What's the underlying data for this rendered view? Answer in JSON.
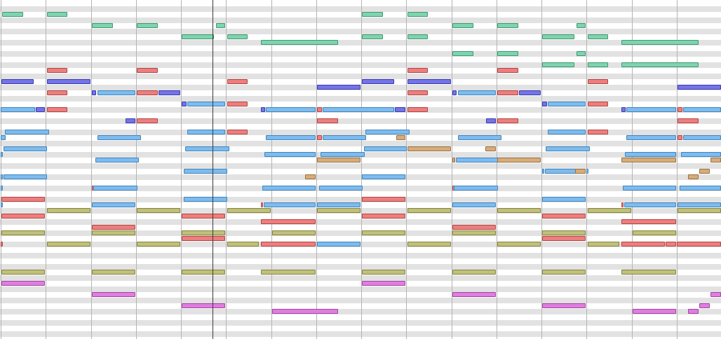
{
  "piano_roll": {
    "lane_count": 60,
    "playhead_bar": 4.7,
    "colors": {
      "green": "#7fd3ae",
      "red": "#ee7e7e",
      "purple": "#7474e8",
      "blue": "#7ebbee",
      "tan": "#d6ac7b",
      "olive": "#c0c07a",
      "pink": "#e07ee0"
    },
    "notes": [
      {
        "c": "green",
        "p": 2,
        "s": 0.03,
        "l": 0.48
      },
      {
        "c": "green",
        "p": 2,
        "s": 1.02,
        "l": 0.48
      },
      {
        "c": "green",
        "p": 2,
        "s": 8.02,
        "l": 0.48
      },
      {
        "c": "green",
        "p": 2,
        "s": 9.02,
        "l": 0.48
      },
      {
        "c": "green",
        "p": 4,
        "s": 2.02,
        "l": 0.48
      },
      {
        "c": "green",
        "p": 4,
        "s": 3.02,
        "l": 0.48
      },
      {
        "c": "green",
        "p": 4,
        "s": 4.77,
        "l": 0.23
      },
      {
        "c": "green",
        "p": 4,
        "s": 10.02,
        "l": 0.48
      },
      {
        "c": "green",
        "p": 4,
        "s": 11.02,
        "l": 0.48
      },
      {
        "c": "green",
        "p": 4,
        "s": 12.77,
        "l": 0.23
      },
      {
        "c": "green",
        "p": 6,
        "s": 4.02,
        "l": 0.73
      },
      {
        "c": "green",
        "p": 6,
        "s": 5.02,
        "l": 0.48
      },
      {
        "c": "green",
        "p": 6,
        "s": 8.02,
        "l": 0.48
      },
      {
        "c": "green",
        "p": 6,
        "s": 9.02,
        "l": 0.48
      },
      {
        "c": "green",
        "p": 6,
        "s": 12.02,
        "l": 0.73
      },
      {
        "c": "green",
        "p": 6,
        "s": 13.02,
        "l": 0.48
      },
      {
        "c": "green",
        "p": 7,
        "s": 5.77,
        "l": 1.73
      },
      {
        "c": "green",
        "p": 7,
        "s": 13.77,
        "l": 1.73
      },
      {
        "c": "green",
        "p": 9,
        "s": 10.02,
        "l": 0.48
      },
      {
        "c": "green",
        "p": 9,
        "s": 11.02,
        "l": 0.48
      },
      {
        "c": "green",
        "p": 9,
        "s": 12.77,
        "l": 0.23
      },
      {
        "c": "green",
        "p": 11,
        "s": 12.02,
        "l": 0.73
      },
      {
        "c": "green",
        "p": 11,
        "s": 13.02,
        "l": 0.48
      },
      {
        "c": "green",
        "p": 11,
        "s": 13.77,
        "l": 1.73
      },
      {
        "c": "red",
        "p": 12,
        "s": 1.02,
        "l": 0.48
      },
      {
        "c": "red",
        "p": 12,
        "s": 3.02,
        "l": 0.48
      },
      {
        "c": "red",
        "p": 12,
        "s": 9.02,
        "l": 0.48
      },
      {
        "c": "red",
        "p": 12,
        "s": 11.02,
        "l": 0.48
      },
      {
        "c": "purple",
        "p": 14,
        "s": 0.02,
        "l": 0.73
      },
      {
        "c": "purple",
        "p": 14,
        "s": 1.02,
        "l": 0.98
      },
      {
        "c": "purple",
        "p": 14,
        "s": 8.02,
        "l": 0.73
      },
      {
        "c": "purple",
        "p": 14,
        "s": 9.02,
        "l": 0.98
      },
      {
        "c": "red",
        "p": 14,
        "s": 5.02,
        "l": 0.48
      },
      {
        "c": "red",
        "p": 14,
        "s": 13.02,
        "l": 0.48
      },
      {
        "c": "purple",
        "p": 15,
        "s": 7.02,
        "l": 0.98
      },
      {
        "c": "purple",
        "p": 15,
        "s": 15.02,
        "l": 0.98
      },
      {
        "c": "red",
        "p": 16,
        "s": 1.02,
        "l": 0.48
      },
      {
        "c": "purple",
        "p": 16,
        "s": 2.02,
        "l": 0.12
      },
      {
        "c": "blue",
        "p": 16,
        "s": 2.14,
        "l": 0.86
      },
      {
        "c": "red",
        "p": 16,
        "s": 3.02,
        "l": 0.48
      },
      {
        "c": "purple",
        "p": 16,
        "s": 3.5,
        "l": 0.5
      },
      {
        "c": "red",
        "p": 16,
        "s": 9.02,
        "l": 0.48
      },
      {
        "c": "purple",
        "p": 16,
        "s": 10.02,
        "l": 0.12
      },
      {
        "c": "blue",
        "p": 16,
        "s": 10.14,
        "l": 0.86
      },
      {
        "c": "red",
        "p": 16,
        "s": 11.02,
        "l": 0.48
      },
      {
        "c": "purple",
        "p": 16,
        "s": 11.5,
        "l": 0.5
      },
      {
        "c": "purple",
        "p": 18,
        "s": 4.02,
        "l": 0.12
      },
      {
        "c": "blue",
        "p": 18,
        "s": 4.14,
        "l": 0.86
      },
      {
        "c": "red",
        "p": 18,
        "s": 5.02,
        "l": 0.48
      },
      {
        "c": "purple",
        "p": 18,
        "s": 12.02,
        "l": 0.12
      },
      {
        "c": "blue",
        "p": 18,
        "s": 12.14,
        "l": 0.86
      },
      {
        "c": "red",
        "p": 18,
        "s": 13.02,
        "l": 0.48
      },
      {
        "c": "blue",
        "p": 19,
        "s": 0.0,
        "l": 0.77
      },
      {
        "c": "purple",
        "p": 19,
        "s": 0.77,
        "l": 0.23
      },
      {
        "c": "red",
        "p": 19,
        "s": 1.02,
        "l": 0.48
      },
      {
        "c": "purple",
        "p": 19,
        "s": 5.77,
        "l": 0.12
      },
      {
        "c": "blue",
        "p": 19,
        "s": 5.89,
        "l": 1.11
      },
      {
        "c": "red",
        "p": 19,
        "s": 7.02,
        "l": 0.12
      },
      {
        "c": "blue",
        "p": 19,
        "s": 7.14,
        "l": 1.61
      },
      {
        "c": "purple",
        "p": 19,
        "s": 8.75,
        "l": 0.25
      },
      {
        "c": "red",
        "p": 19,
        "s": 9.02,
        "l": 0.48
      },
      {
        "c": "purple",
        "p": 19,
        "s": 13.77,
        "l": 0.12
      },
      {
        "c": "blue",
        "p": 19,
        "s": 13.89,
        "l": 1.11
      },
      {
        "c": "red",
        "p": 19,
        "s": 15.02,
        "l": 0.12
      },
      {
        "c": "blue",
        "p": 19,
        "s": 15.14,
        "l": 0.86
      },
      {
        "c": "purple",
        "p": 21,
        "s": 2.77,
        "l": 0.23
      },
      {
        "c": "red",
        "p": 21,
        "s": 3.02,
        "l": 0.48
      },
      {
        "c": "red",
        "p": 21,
        "s": 7.02,
        "l": 0.48
      },
      {
        "c": "purple",
        "p": 21,
        "s": 10.77,
        "l": 0.23
      },
      {
        "c": "red",
        "p": 21,
        "s": 11.02,
        "l": 0.48
      },
      {
        "c": "red",
        "p": 21,
        "s": 15.02,
        "l": 0.48
      },
      {
        "c": "blue",
        "p": 23,
        "s": 0.1,
        "l": 0.99
      },
      {
        "c": "blue",
        "p": 23,
        "s": 4.14,
        "l": 0.86
      },
      {
        "c": "red",
        "p": 23,
        "s": 5.02,
        "l": 0.48
      },
      {
        "c": "blue",
        "p": 23,
        "s": 8.1,
        "l": 0.99
      },
      {
        "c": "blue",
        "p": 23,
        "s": 12.14,
        "l": 0.86
      },
      {
        "c": "red",
        "p": 23,
        "s": 13.02,
        "l": 0.48
      },
      {
        "c": "blue",
        "p": 24,
        "s": 0.0,
        "l": 0.12
      },
      {
        "c": "blue",
        "p": 24,
        "s": 2.14,
        "l": 0.98
      },
      {
        "c": "blue",
        "p": 24,
        "s": 5.89,
        "l": 1.11
      },
      {
        "c": "red",
        "p": 24,
        "s": 7.02,
        "l": 0.12
      },
      {
        "c": "blue",
        "p": 24,
        "s": 7.14,
        "l": 0.98
      },
      {
        "c": "tan",
        "p": 24,
        "s": 8.77,
        "l": 0.23
      },
      {
        "c": "blue",
        "p": 24,
        "s": 10.14,
        "l": 0.98
      },
      {
        "c": "blue",
        "p": 24,
        "s": 13.89,
        "l": 1.11
      },
      {
        "c": "red",
        "p": 24,
        "s": 15.02,
        "l": 0.12
      },
      {
        "c": "blue",
        "p": 24,
        "s": 15.14,
        "l": 0.86
      },
      {
        "c": "blue",
        "p": 26,
        "s": 0.06,
        "l": 0.99
      },
      {
        "c": "blue",
        "p": 26,
        "s": 4.1,
        "l": 0.99
      },
      {
        "c": "blue",
        "p": 26,
        "s": 8.06,
        "l": 0.96
      },
      {
        "c": "tan",
        "p": 26,
        "s": 9.02,
        "l": 0.98
      },
      {
        "c": "tan",
        "p": 26,
        "s": 10.75,
        "l": 0.25
      },
      {
        "c": "blue",
        "p": 26,
        "s": 12.1,
        "l": 0.99
      },
      {
        "c": "blue",
        "p": 27,
        "s": 0.0,
        "l": 0.06
      },
      {
        "c": "blue",
        "p": 27,
        "s": 5.85,
        "l": 1.15
      },
      {
        "c": "blue",
        "p": 27,
        "s": 7.1,
        "l": 1.0
      },
      {
        "c": "blue",
        "p": 27,
        "s": 13.85,
        "l": 1.15
      },
      {
        "c": "blue",
        "p": 27,
        "s": 15.1,
        "l": 0.9
      },
      {
        "c": "blue",
        "p": 28,
        "s": 2.1,
        "l": 0.99
      },
      {
        "c": "tan",
        "p": 28,
        "s": 7.02,
        "l": 0.98
      },
      {
        "c": "tan",
        "p": 28,
        "s": 10.02,
        "l": 0.08
      },
      {
        "c": "blue",
        "p": 28,
        "s": 10.1,
        "l": 0.99
      },
      {
        "c": "tan",
        "p": 28,
        "s": 11.02,
        "l": 0.98
      },
      {
        "c": "tan",
        "p": 28,
        "s": 13.77,
        "l": 1.23
      },
      {
        "c": "tan",
        "p": 28,
        "s": 15.75,
        "l": 0.25
      },
      {
        "c": "blue",
        "p": 30,
        "s": 4.06,
        "l": 0.99
      },
      {
        "c": "blue",
        "p": 30,
        "s": 12.02,
        "l": 0.06
      },
      {
        "c": "blue",
        "p": 30,
        "s": 12.08,
        "l": 0.7
      },
      {
        "c": "tan",
        "p": 30,
        "s": 12.75,
        "l": 0.25
      },
      {
        "c": "blue",
        "p": 30,
        "s": 13.0,
        "l": 0.06
      },
      {
        "c": "tan",
        "p": 30,
        "s": 15.5,
        "l": 0.25
      },
      {
        "c": "blue",
        "p": 31,
        "s": 0.0,
        "l": 0.06
      },
      {
        "c": "blue",
        "p": 31,
        "s": 0.06,
        "l": 0.99
      },
      {
        "c": "tan",
        "p": 31,
        "s": 6.75,
        "l": 0.25
      },
      {
        "c": "blue",
        "p": 31,
        "s": 8.02,
        "l": 0.98
      },
      {
        "c": "tan",
        "p": 31,
        "s": 15.25,
        "l": 0.25
      },
      {
        "c": "blue",
        "p": 33,
        "s": 0.0,
        "l": 0.06
      },
      {
        "c": "red",
        "p": 33,
        "s": 2.02,
        "l": 0.04
      },
      {
        "c": "blue",
        "p": 33,
        "s": 2.06,
        "l": 0.99
      },
      {
        "c": "blue",
        "p": 33,
        "s": 5.8,
        "l": 1.2
      },
      {
        "c": "blue",
        "p": 33,
        "s": 7.06,
        "l": 0.99
      },
      {
        "c": "red",
        "p": 33,
        "s": 10.02,
        "l": 0.04
      },
      {
        "c": "blue",
        "p": 33,
        "s": 10.06,
        "l": 0.99
      },
      {
        "c": "blue",
        "p": 33,
        "s": 13.8,
        "l": 1.2
      },
      {
        "c": "blue",
        "p": 33,
        "s": 15.06,
        "l": 0.94
      },
      {
        "c": "red",
        "p": 35,
        "s": 0.02,
        "l": 0.98
      },
      {
        "c": "blue",
        "p": 35,
        "s": 4.06,
        "l": 0.99
      },
      {
        "c": "red",
        "p": 35,
        "s": 8.02,
        "l": 0.98
      },
      {
        "c": "blue",
        "p": 35,
        "s": 12.02,
        "l": 0.98
      },
      {
        "c": "blue",
        "p": 36,
        "s": 0.0,
        "l": 0.06
      },
      {
        "c": "blue",
        "p": 36,
        "s": 2.02,
        "l": 0.98
      },
      {
        "c": "red",
        "p": 36,
        "s": 5.77,
        "l": 0.06
      },
      {
        "c": "blue",
        "p": 36,
        "s": 5.83,
        "l": 1.17
      },
      {
        "c": "blue",
        "p": 36,
        "s": 7.02,
        "l": 0.98
      },
      {
        "c": "blue",
        "p": 36,
        "s": 10.02,
        "l": 0.98
      },
      {
        "c": "red",
        "p": 36,
        "s": 13.77,
        "l": 0.06
      },
      {
        "c": "blue",
        "p": 36,
        "s": 13.83,
        "l": 1.17
      },
      {
        "c": "blue",
        "p": 36,
        "s": 15.02,
        "l": 0.98
      },
      {
        "c": "olive",
        "p": 37,
        "s": 1.02,
        "l": 0.98
      },
      {
        "c": "olive",
        "p": 37,
        "s": 3.02,
        "l": 0.98
      },
      {
        "c": "olive",
        "p": 37,
        "s": 5.02,
        "l": 0.98
      },
      {
        "c": "olive",
        "p": 37,
        "s": 7.02,
        "l": 0.98
      },
      {
        "c": "olive",
        "p": 37,
        "s": 9.02,
        "l": 0.98
      },
      {
        "c": "olive",
        "p": 37,
        "s": 11.02,
        "l": 0.98
      },
      {
        "c": "olive",
        "p": 37,
        "s": 13.02,
        "l": 0.98
      },
      {
        "c": "olive",
        "p": 37,
        "s": 15.02,
        "l": 0.98
      },
      {
        "c": "red",
        "p": 38,
        "s": 0.02,
        "l": 0.98
      },
      {
        "c": "red",
        "p": 38,
        "s": 4.02,
        "l": 0.98
      },
      {
        "c": "red",
        "p": 38,
        "s": 8.02,
        "l": 0.98
      },
      {
        "c": "red",
        "p": 38,
        "s": 12.02,
        "l": 0.98
      },
      {
        "c": "red",
        "p": 39,
        "s": 5.77,
        "l": 1.23
      },
      {
        "c": "red",
        "p": 39,
        "s": 13.77,
        "l": 1.23
      },
      {
        "c": "red",
        "p": 40,
        "s": 2.02,
        "l": 0.98
      },
      {
        "c": "red",
        "p": 40,
        "s": 10.02,
        "l": 0.98
      },
      {
        "c": "olive",
        "p": 41,
        "s": 0.02,
        "l": 0.98
      },
      {
        "c": "olive",
        "p": 41,
        "s": 2.02,
        "l": 0.98
      },
      {
        "c": "olive",
        "p": 41,
        "s": 4.02,
        "l": 0.98
      },
      {
        "c": "olive",
        "p": 41,
        "s": 6.02,
        "l": 0.98
      },
      {
        "c": "olive",
        "p": 41,
        "s": 8.02,
        "l": 0.98
      },
      {
        "c": "olive",
        "p": 41,
        "s": 10.02,
        "l": 0.98
      },
      {
        "c": "olive",
        "p": 41,
        "s": 12.02,
        "l": 0.98
      },
      {
        "c": "olive",
        "p": 41,
        "s": 14.02,
        "l": 0.98
      },
      {
        "c": "red",
        "p": 42,
        "s": 4.02,
        "l": 0.98
      },
      {
        "c": "red",
        "p": 42,
        "s": 12.02,
        "l": 0.98
      },
      {
        "c": "red",
        "p": 43,
        "s": 0.0,
        "l": 0.04
      },
      {
        "c": "olive",
        "p": 43,
        "s": 1.02,
        "l": 0.98
      },
      {
        "c": "olive",
        "p": 43,
        "s": 3.02,
        "l": 0.98
      },
      {
        "c": "olive",
        "p": 43,
        "s": 5.02,
        "l": 0.73
      },
      {
        "c": "red",
        "p": 43,
        "s": 5.77,
        "l": 1.23
      },
      {
        "c": "blue",
        "p": 43,
        "s": 7.02,
        "l": 0.98
      },
      {
        "c": "olive",
        "p": 43,
        "s": 9.02,
        "l": 0.98
      },
      {
        "c": "olive",
        "p": 43,
        "s": 11.02,
        "l": 0.98
      },
      {
        "c": "olive",
        "p": 43,
        "s": 13.02,
        "l": 0.73
      },
      {
        "c": "red",
        "p": 43,
        "s": 13.77,
        "l": 0.98
      },
      {
        "c": "red",
        "p": 43,
        "s": 14.75,
        "l": 0.25
      },
      {
        "c": "red",
        "p": 43,
        "s": 15.0,
        "l": 1.0
      },
      {
        "c": "olive",
        "p": 48,
        "s": 0.02,
        "l": 0.98
      },
      {
        "c": "olive",
        "p": 48,
        "s": 2.02,
        "l": 0.98
      },
      {
        "c": "olive",
        "p": 48,
        "s": 4.02,
        "l": 0.98
      },
      {
        "c": "olive",
        "p": 48,
        "s": 5.77,
        "l": 1.23
      },
      {
        "c": "olive",
        "p": 48,
        "s": 8.02,
        "l": 0.98
      },
      {
        "c": "olive",
        "p": 48,
        "s": 10.02,
        "l": 0.98
      },
      {
        "c": "olive",
        "p": 48,
        "s": 12.02,
        "l": 0.98
      },
      {
        "c": "olive",
        "p": 48,
        "s": 13.77,
        "l": 1.23
      },
      {
        "c": "pink",
        "p": 50,
        "s": 0.02,
        "l": 0.98
      },
      {
        "c": "pink",
        "p": 50,
        "s": 8.02,
        "l": 0.98
      },
      {
        "c": "pink",
        "p": 52,
        "s": 2.02,
        "l": 0.98
      },
      {
        "c": "pink",
        "p": 52,
        "s": 10.02,
        "l": 0.98
      },
      {
        "c": "pink",
        "p": 52,
        "s": 15.75,
        "l": 0.25
      },
      {
        "c": "pink",
        "p": 54,
        "s": 4.02,
        "l": 0.98
      },
      {
        "c": "pink",
        "p": 54,
        "s": 12.02,
        "l": 0.98
      },
      {
        "c": "pink",
        "p": 54,
        "s": 15.5,
        "l": 0.25
      },
      {
        "c": "pink",
        "p": 55,
        "s": 6.02,
        "l": 1.48
      },
      {
        "c": "pink",
        "p": 55,
        "s": 14.02,
        "l": 0.98
      },
      {
        "c": "pink",
        "p": 55,
        "s": 15.25,
        "l": 0.25
      }
    ]
  }
}
